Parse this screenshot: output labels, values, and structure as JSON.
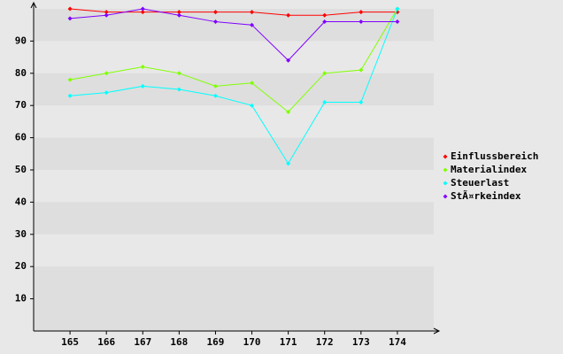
{
  "chart_data": {
    "type": "line",
    "categories": [
      "165",
      "166",
      "167",
      "168",
      "169",
      "170",
      "171",
      "172",
      "173",
      "174"
    ],
    "series": [
      {
        "name": "Einflussbereich",
        "color": "#ff0000",
        "values": [
          100,
          99,
          99,
          99,
          99,
          99,
          98,
          98,
          99,
          99
        ]
      },
      {
        "name": "Materialindex",
        "color": "#80ff00",
        "values": [
          78,
          80,
          82,
          80,
          76,
          77,
          68,
          80,
          81,
          100
        ]
      },
      {
        "name": "Steuerlast",
        "color": "#00ffff",
        "values": [
          73,
          74,
          76,
          75,
          73,
          70,
          52,
          71,
          71,
          100
        ]
      },
      {
        "name": "StÃ¤rkeindex",
        "color": "#8000ff",
        "values": [
          97,
          98,
          100,
          98,
          96,
          95,
          84,
          96,
          96,
          96
        ]
      }
    ],
    "ylim": [
      0,
      100
    ],
    "yticks": [
      10,
      20,
      30,
      40,
      50,
      60,
      70,
      80,
      90
    ],
    "grid": true
  }
}
